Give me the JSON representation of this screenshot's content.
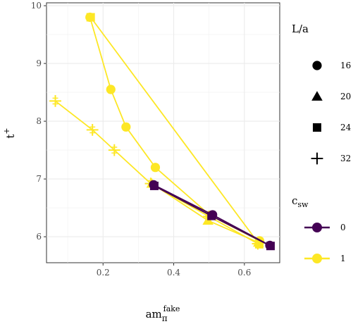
{
  "chart_data": {
    "type": "line",
    "xlabel": "am",
    "xlabel_sub": "π",
    "xlabel_sup": "fake",
    "ylabel": "t",
    "ylabel_sup": "+",
    "xlim": [
      0.04,
      0.7
    ],
    "ylim": [
      5.55,
      10.05
    ],
    "x_ticks": [
      0.2,
      0.4,
      0.6
    ],
    "x_tick_labels": [
      "0.2",
      "0.4",
      "0.6"
    ],
    "y_ticks": [
      6,
      7,
      8,
      9,
      10
    ],
    "y_tick_labels": [
      "6",
      "7",
      "8",
      "9",
      "10"
    ],
    "grid": true,
    "legend_placement": "right",
    "shape_legend": {
      "title": "L/a",
      "entries": [
        {
          "label": "16",
          "shape": "circle"
        },
        {
          "label": "20",
          "shape": "triangle"
        },
        {
          "label": "24",
          "shape": "square"
        },
        {
          "label": "32",
          "shape": "plus"
        }
      ]
    },
    "color_legend": {
      "title": "c",
      "title_sub": "sw",
      "entries": [
        {
          "label": "0",
          "color": "#440154"
        },
        {
          "label": "1",
          "color": "#FDE725"
        }
      ]
    },
    "series": [
      {
        "csw": "1",
        "L": "16",
        "color": "#FDE725",
        "shape": "circle",
        "points": [
          {
            "x": 0.163,
            "y": 9.8,
            "err": 0.06
          },
          {
            "x": 0.222,
            "y": 8.55,
            "err": 0.06
          },
          {
            "x": 0.265,
            "y": 7.9,
            "err": 0.06
          },
          {
            "x": 0.348,
            "y": 7.2,
            "err": 0.06
          },
          {
            "x": 0.503,
            "y": 6.37,
            "err": 0.05
          },
          {
            "x": 0.643,
            "y": 5.93,
            "err": 0.05
          }
        ]
      },
      {
        "csw": "1",
        "L": "20",
        "color": "#FDE725",
        "shape": "triangle",
        "points": [
          {
            "x": 0.338,
            "y": 6.92,
            "err": 0.05
          },
          {
            "x": 0.497,
            "y": 6.28,
            "err": 0.05
          },
          {
            "x": 0.64,
            "y": 5.9,
            "err": 0.05
          }
        ]
      },
      {
        "csw": "1",
        "L": "24",
        "color": "#FDE725",
        "shape": "square",
        "points": [
          {
            "x": 0.165,
            "y": 9.8,
            "err": 0.05
          },
          {
            "x": 0.642,
            "y": 5.87,
            "err": 0.05
          }
        ]
      },
      {
        "csw": "1",
        "L": "32",
        "color": "#FDE725",
        "shape": "plus",
        "points": [
          {
            "x": 0.065,
            "y": 8.35,
            "err": 0.05
          },
          {
            "x": 0.17,
            "y": 7.85,
            "err": 0.05
          },
          {
            "x": 0.232,
            "y": 7.5,
            "err": 0.05
          },
          {
            "x": 0.335,
            "y": 6.92,
            "err": 0.05
          },
          {
            "x": 0.5,
            "y": 6.35,
            "err": 0.05
          },
          {
            "x": 0.638,
            "y": 5.88,
            "err": 0.05
          }
        ]
      },
      {
        "csw": "0",
        "L": "16",
        "color": "#440154",
        "shape": "circle",
        "points": [
          {
            "x": 0.343,
            "y": 6.9,
            "err": 0.06
          },
          {
            "x": 0.51,
            "y": 6.38,
            "err": 0.06
          },
          {
            "x": 0.672,
            "y": 5.85,
            "err": 0.05
          }
        ]
      },
      {
        "csw": "0",
        "L": "24",
        "color": "#440154",
        "shape": "square",
        "points": [
          {
            "x": 0.345,
            "y": 6.88,
            "err": 0.05
          },
          {
            "x": 0.507,
            "y": 6.36,
            "err": 0.05
          },
          {
            "x": 0.674,
            "y": 5.84,
            "err": 0.05
          }
        ]
      }
    ]
  }
}
